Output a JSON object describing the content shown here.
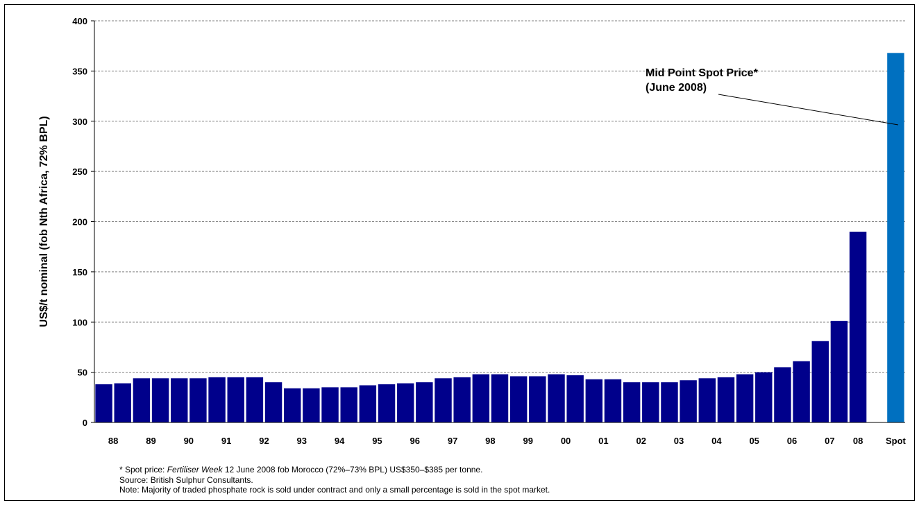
{
  "chart_data": {
    "type": "bar",
    "ylabel": "US$/t nominal (fob Nth Africa, 72% BPL)",
    "ylim": [
      0,
      400
    ],
    "yticks": [
      0,
      50,
      100,
      150,
      200,
      250,
      300,
      350,
      400
    ],
    "grid": true,
    "x_tick_labels": [
      "88",
      "89",
      "90",
      "91",
      "92",
      "93",
      "94",
      "95",
      "96",
      "97",
      "98",
      "99",
      "00",
      "01",
      "02",
      "03",
      "04",
      "05",
      "06",
      "07",
      "08",
      "Spot"
    ],
    "series": [
      {
        "color": "#00008B",
        "values": [
          38,
          39,
          44,
          44,
          44,
          44,
          45,
          45,
          45,
          40,
          34,
          34,
          35,
          35,
          37,
          38,
          39,
          40,
          44,
          45,
          48,
          48,
          46,
          46,
          48,
          47,
          43,
          43,
          40,
          40,
          40,
          42,
          44,
          45,
          48,
          50,
          55,
          61,
          81,
          101,
          190
        ]
      },
      {
        "color": "#0070C0",
        "values": [
          368
        ]
      }
    ],
    "annotation": {
      "lines": [
        "Mid Point Spot Price*",
        "(June 2008)"
      ]
    }
  },
  "footnotes": {
    "spot_prefix": "* Spot price: ",
    "spot_source": "Fertiliser Week",
    "spot_rest": " 12 June 2008 fob Morocco (72%–73% BPL) US$350–$385 per tonne.",
    "source": "Source: British Sulphur Consultants.",
    "note": "Note: Majority of traded phosphate rock is sold under contract and only a small percentage is sold in the spot market."
  }
}
